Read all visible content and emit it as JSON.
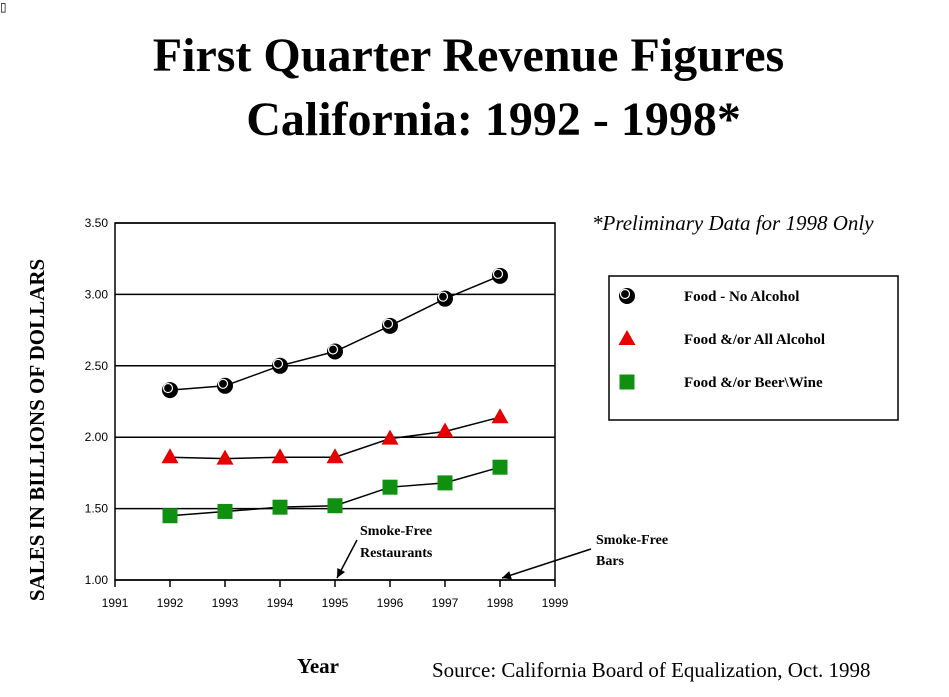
{
  "corner_glyph": "▯",
  "title_line1": "First Quarter Revenue Figures",
  "title_line2": "California: 1992 - 1998*",
  "note": "*Preliminary Data for 1998 Only",
  "source": "Source: California Board of Equalization, Oct. 1998",
  "chart_data": {
    "type": "line",
    "xlabel": "Year",
    "ylabel": "SALES IN BILLIONS OF DOLLARS",
    "x_ticks": [
      "1991",
      "1992",
      "1993",
      "1994",
      "1995",
      "1996",
      "1997",
      "1998",
      "1999"
    ],
    "y_ticks": [
      "1.00",
      "1.50",
      "2.00",
      "2.50",
      "3.00",
      "3.50"
    ],
    "xlim": [
      1991,
      1999
    ],
    "ylim": [
      1.0,
      3.5
    ],
    "grid": "horizontal",
    "legend_position": "right",
    "x": [
      1992,
      1993,
      1994,
      1995,
      1996,
      1997,
      1998
    ],
    "series": [
      {
        "name": "Food - No Alcohol",
        "marker": "circle",
        "color": "#000000",
        "values": [
          2.33,
          2.36,
          2.5,
          2.6,
          2.78,
          2.97,
          3.13
        ]
      },
      {
        "name": "Food &/or All Alcohol",
        "marker": "triangle",
        "color": "#e60000",
        "values": [
          1.86,
          1.85,
          1.86,
          1.86,
          1.99,
          2.04,
          2.14
        ]
      },
      {
        "name": "Food &/or Beer\\Wine",
        "marker": "square",
        "color": "#109010",
        "values": [
          1.45,
          1.48,
          1.51,
          1.52,
          1.65,
          1.68,
          1.79
        ]
      }
    ],
    "annotations": [
      {
        "lines": [
          "Smoke-Free",
          "Restaurants"
        ],
        "points_to_x": 1995
      },
      {
        "lines": [
          "Smoke-Free",
          "Bars"
        ],
        "points_to_x": 1998
      }
    ]
  }
}
